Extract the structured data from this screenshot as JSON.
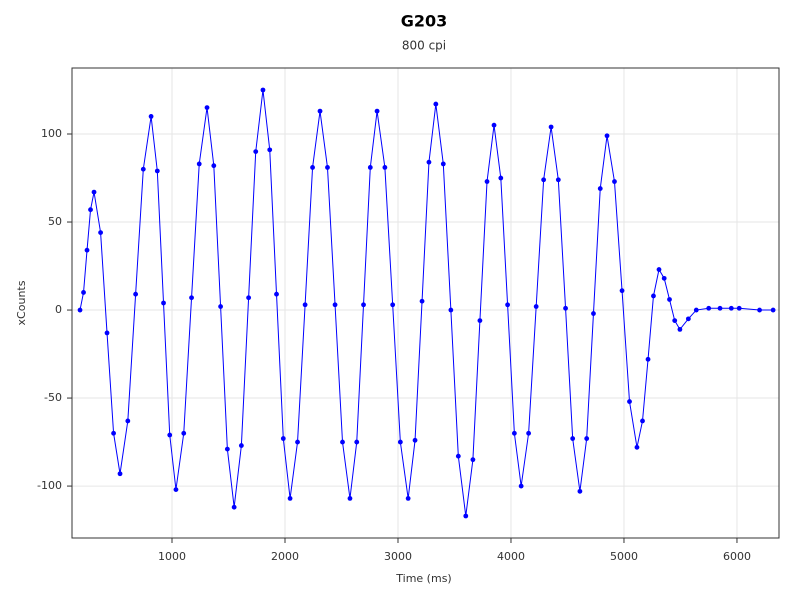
{
  "chart_data": {
    "type": "line",
    "title": "G203",
    "subtitle": "800 cpi",
    "x_label": "Time (ms)",
    "y_label": "xCounts",
    "color": "#0000ff",
    "markers": true,
    "grid": true,
    "x": [
      186,
      217,
      248,
      279,
      310,
      368,
      425,
      483,
      540,
      609,
      678,
      746,
      815,
      870,
      925,
      980,
      1035,
      1104,
      1173,
      1241,
      1310,
      1370,
      1430,
      1490,
      1550,
      1614,
      1678,
      1741,
      1805,
      1865,
      1925,
      1985,
      2045,
      2111,
      2178,
      2244,
      2310,
      2376,
      2443,
      2509,
      2575,
      2635,
      2695,
      2755,
      2815,
      2884,
      2953,
      3021,
      3090,
      3151,
      3213,
      3274,
      3335,
      3401,
      3468,
      3534,
      3600,
      3663,
      3725,
      3788,
      3850,
      3910,
      3970,
      4030,
      4090,
      4156,
      4223,
      4289,
      4355,
      4419,
      4483,
      4546,
      4610,
      4670,
      4730,
      4790,
      4850,
      4916,
      4983,
      5049,
      5115,
      5164,
      5213,
      5261,
      5310,
      5356,
      5403,
      5449,
      5495,
      5570,
      5640,
      5750,
      5850,
      5950,
      6020,
      6200,
      6320
    ],
    "values": [
      0,
      10,
      34,
      57,
      67,
      44,
      -13,
      -70,
      -93,
      -63,
      9,
      80,
      110,
      79,
      4,
      -71,
      -102,
      -70,
      7,
      83,
      115,
      82,
      2,
      -79,
      -112,
      -77,
      7,
      90,
      125,
      91,
      9,
      -73,
      -107,
      -75,
      3,
      81,
      113,
      81,
      3,
      -75,
      -107,
      -75,
      3,
      81,
      113,
      81,
      3,
      -75,
      -107,
      -74,
      5,
      84,
      117,
      83,
      0,
      -83,
      -117,
      -85,
      -6,
      73,
      105,
      75,
      3,
      -70,
      -100,
      -70,
      2,
      74,
      104,
      74,
      1,
      -73,
      -103,
      -73,
      -2,
      69,
      99,
      73,
      11,
      -52,
      -78,
      -63,
      -28,
      8,
      23,
      18,
      6,
      -6,
      -11,
      -5,
      0,
      1,
      1,
      1,
      1,
      0,
      0
    ],
    "xlim": [
      115,
      6372
    ],
    "xticks": [
      1000,
      2000,
      3000,
      4000,
      5000,
      6000
    ],
    "ylim": [
      -129.5,
      137.5
    ],
    "yticks": [
      -100,
      -50,
      0,
      50,
      100
    ]
  }
}
